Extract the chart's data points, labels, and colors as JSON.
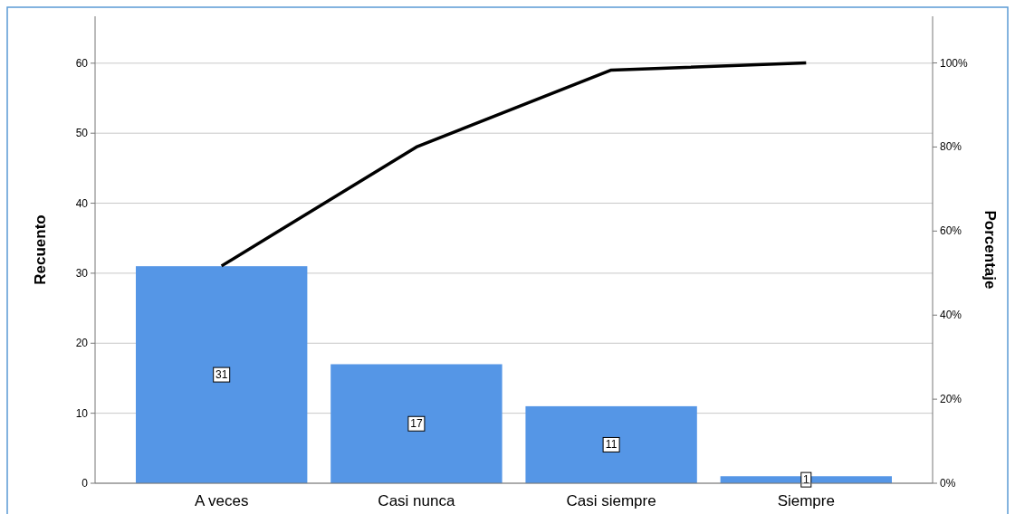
{
  "chart_data": {
    "type": "bar",
    "ylabel": "Recuento",
    "y2label": "Porcentaje",
    "categories": [
      "A veces",
      "Casi nunca",
      "Casi siempre",
      "Siempre"
    ],
    "series": [
      {
        "color": "#5596e6",
        "values": [
          31,
          17,
          11,
          1
        ],
        "value_labels": [
          "31",
          "17",
          "11",
          "1"
        ]
      },
      {
        "type": "line",
        "axis": "y2",
        "color": "#000000",
        "values": [
          51.7,
          80,
          98.3,
          100
        ]
      }
    ],
    "ylim": [
      0,
      66.7
    ],
    "yticks": [
      0,
      10,
      20,
      30,
      40,
      50,
      60
    ],
    "y2lim": [
      0,
      111.1
    ],
    "y2ticks": [
      {
        "value": 0,
        "label": "0%"
      },
      {
        "value": 20,
        "label": "20%"
      },
      {
        "value": 40,
        "label": "40%"
      },
      {
        "value": 60,
        "label": "60%"
      },
      {
        "value": 80,
        "label": "80%"
      },
      {
        "value": 100,
        "label": "100%"
      }
    ],
    "grid": "y",
    "marker": "none",
    "line_style": "solid"
  }
}
